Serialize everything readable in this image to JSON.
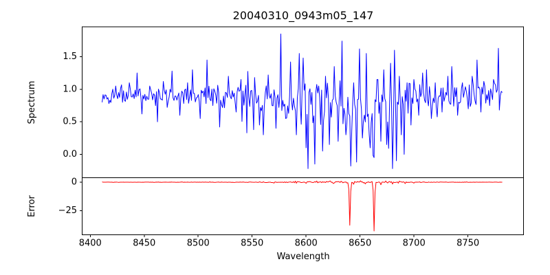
{
  "figure": {
    "background": "#ffffff",
    "spine_color": "#000000",
    "tick_color": "#000000"
  },
  "chart_data": {
    "type": "line",
    "title": "20040310_0943m05_147",
    "xlabel": "Wavelength",
    "grid": false,
    "legend": null,
    "x_data_start": 8411,
    "x_data_end": 8782,
    "x_step": 0.9,
    "xlim": [
      8392.5,
      8801.5
    ],
    "xticks": [
      {
        "v": 8400,
        "label": "8400"
      },
      {
        "v": 8450,
        "label": "8450"
      },
      {
        "v": 8500,
        "label": "8500"
      },
      {
        "v": 8550,
        "label": "8550"
      },
      {
        "v": 8600,
        "label": "8600"
      },
      {
        "v": 8650,
        "label": "8650"
      },
      {
        "v": 8700,
        "label": "8700"
      },
      {
        "v": 8750,
        "label": "8750"
      }
    ],
    "subplots": [
      {
        "name": "spectrum",
        "ylabel": "Spectrum",
        "color": "#0000ff",
        "line_width": 1,
        "ylim": [
          -0.36,
          1.96
        ],
        "yticks": [
          {
            "v": 0.0,
            "label": "0.0"
          },
          {
            "v": 0.5,
            "label": "0.5"
          },
          {
            "v": 1.0,
            "label": "1.0"
          },
          {
            "v": 1.5,
            "label": "1.5"
          }
        ],
        "seed": 20040310,
        "baseline_mean": [
          [
            8411,
            0.9
          ],
          [
            8450,
            0.92
          ],
          [
            8500,
            0.89
          ],
          [
            8540,
            0.86
          ],
          [
            8580,
            0.84
          ],
          [
            8610,
            0.74
          ],
          [
            8640,
            0.72
          ],
          [
            8665,
            0.75
          ],
          [
            8685,
            0.82
          ],
          [
            8705,
            0.88
          ],
          [
            8740,
            0.9
          ],
          [
            8782,
            0.94
          ]
        ],
        "noise_amplitude": [
          [
            8411,
            0.1
          ],
          [
            8450,
            0.12
          ],
          [
            8470,
            0.11
          ],
          [
            8500,
            0.14
          ],
          [
            8530,
            0.17
          ],
          [
            8560,
            0.22
          ],
          [
            8590,
            0.3
          ],
          [
            8620,
            0.38
          ],
          [
            8650,
            0.38
          ],
          [
            8670,
            0.34
          ],
          [
            8690,
            0.24
          ],
          [
            8710,
            0.16
          ],
          [
            8740,
            0.15
          ],
          [
            8765,
            0.17
          ],
          [
            8782,
            0.2
          ]
        ],
        "noise_clamp": [
          -0.27,
          1.88
        ],
        "key_points": [
          [
            8413,
            0.85
          ],
          [
            8417,
            0.78
          ],
          [
            8424,
            1.05
          ],
          [
            8430,
            0.8
          ],
          [
            8436,
            1.1
          ],
          [
            8443,
            1.25
          ],
          [
            8448,
            0.62
          ],
          [
            8455,
            1.05
          ],
          [
            8462,
            0.5
          ],
          [
            8468,
            1.12
          ],
          [
            8476,
            1.28
          ],
          [
            8483,
            0.6
          ],
          [
            8490,
            1.1
          ],
          [
            8495,
            1.3
          ],
          [
            8502,
            0.55
          ],
          [
            8508,
            1.45
          ],
          [
            8514,
            0.75
          ],
          [
            8520,
            0.42
          ],
          [
            8528,
            1.2
          ],
          [
            8535,
            0.65
          ],
          [
            8540,
            1.15
          ],
          [
            8545,
            0.33
          ],
          [
            8552,
            1.18
          ],
          [
            8557,
            0.45
          ],
          [
            8560,
            0.3
          ],
          [
            8565,
            1.22
          ],
          [
            8572,
            0.4
          ],
          [
            8576.5,
            1.85
          ],
          [
            8581,
            0.55
          ],
          [
            8586,
            1.42
          ],
          [
            8591,
            0.3
          ],
          [
            8594,
            1.55
          ],
          [
            8597,
            1.48
          ],
          [
            8600,
            0.1
          ],
          [
            8602,
            -0.22
          ],
          [
            8605,
            0.95
          ],
          [
            8608,
            -0.15
          ],
          [
            8612,
            1.05
          ],
          [
            8615,
            0.05
          ],
          [
            8618,
            1.2
          ],
          [
            8622,
            0.15
          ],
          [
            8626,
            1.35
          ],
          [
            8630,
            0.2
          ],
          [
            8633.6,
            1.74
          ],
          [
            8637,
            0.3
          ],
          [
            8641,
            -0.18
          ],
          [
            8644,
            1.1
          ],
          [
            8647,
            -0.12
          ],
          [
            8649.4,
            1.62
          ],
          [
            8652,
            0.25
          ],
          [
            8656,
            1.55
          ],
          [
            8659,
            0.1
          ],
          [
            8663,
            -0.05
          ],
          [
            8666,
            1.15
          ],
          [
            8669,
            0.2
          ],
          [
            8672,
            1.3
          ],
          [
            8675,
            0.15
          ],
          [
            8678,
            1.4
          ],
          [
            8680,
            -0.22
          ],
          [
            8681.5,
            1.6
          ],
          [
            8684,
            -0.1
          ],
          [
            8686,
            1.2
          ],
          [
            8688,
            0.3
          ],
          [
            8690.6,
            0.0
          ],
          [
            8694,
            1.1
          ],
          [
            8697,
            0.45
          ],
          [
            8700,
            1.15
          ],
          [
            8704,
            0.6
          ],
          [
            8708,
            1.25
          ],
          [
            8712,
            1.3
          ],
          [
            8716,
            0.55
          ],
          [
            8720,
            1.1
          ],
          [
            8726,
            0.65
          ],
          [
            8731,
            1.2
          ],
          [
            8735,
            1.35
          ],
          [
            8740,
            0.6
          ],
          [
            8745,
            1.1
          ],
          [
            8750,
            0.7
          ],
          [
            8754,
            1.2
          ],
          [
            8758,
            1.45
          ],
          [
            8762,
            0.65
          ],
          [
            8766,
            1.05
          ],
          [
            8770,
            0.75
          ],
          [
            8774,
            1.15
          ],
          [
            8778,
            1.63
          ],
          [
            8780,
            0.9
          ],
          [
            8782,
            0.95
          ]
        ]
      },
      {
        "name": "error",
        "ylabel": "Error",
        "color": "#ff0000",
        "line_width": 1,
        "ylim": [
          -45.9,
          3.9
        ],
        "yticks": [
          {
            "v": 0,
            "label": "0"
          },
          {
            "v": -25,
            "label": "−25"
          }
        ],
        "seed": 943147,
        "baseline_mean": [
          [
            8411,
            0
          ],
          [
            8782,
            0
          ]
        ],
        "noise_amplitude": [
          [
            8411,
            0.12
          ],
          [
            8540,
            0.15
          ],
          [
            8560,
            0.35
          ],
          [
            8600,
            0.5
          ],
          [
            8630,
            0.6
          ],
          [
            8670,
            0.6
          ],
          [
            8700,
            0.35
          ],
          [
            8715,
            0.18
          ],
          [
            8782,
            0.12
          ]
        ],
        "noise_clamp": [
          -2.5,
          1.5
        ],
        "key_points": [
          [
            8570,
            -0.8
          ],
          [
            8590,
            0.9
          ],
          [
            8600,
            -1.0
          ],
          [
            8610,
            1.0
          ],
          [
            8625,
            -1.2
          ],
          [
            8632,
            0.8
          ],
          [
            8639.2,
            -6
          ],
          [
            8640.1,
            -37.6
          ],
          [
            8641,
            -8
          ],
          [
            8644,
            -1.8
          ],
          [
            8650,
            1.2
          ],
          [
            8655,
            -1.5
          ],
          [
            8662.3,
            -7
          ],
          [
            8663.2,
            -42.6
          ],
          [
            8664.1,
            -9
          ],
          [
            8669,
            -2.2
          ],
          [
            8674,
            1.0
          ],
          [
            8680,
            -1.6
          ],
          [
            8686,
            0.9
          ],
          [
            8692,
            -1.2
          ],
          [
            8700,
            -0.8
          ]
        ]
      }
    ]
  }
}
